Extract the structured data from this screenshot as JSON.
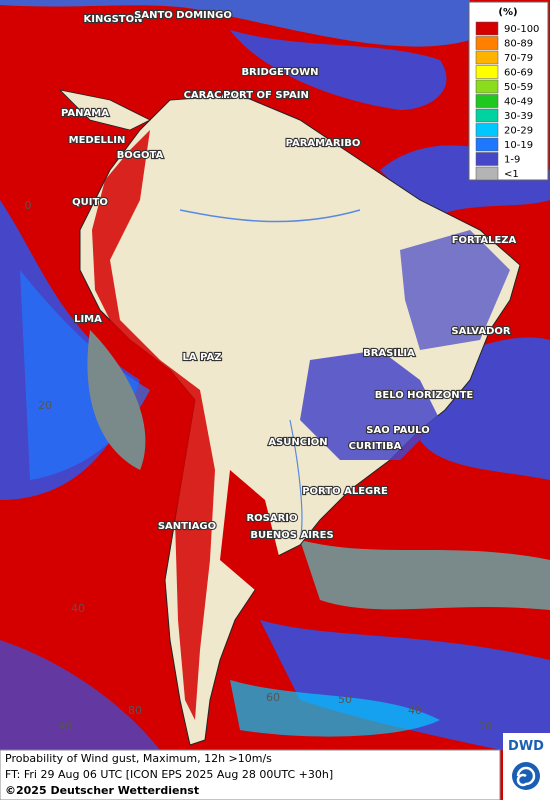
{
  "legend": {
    "unit": "(%)",
    "items": [
      {
        "label": "90-100",
        "color": "#d40000"
      },
      {
        "label": "80-89",
        "color": "#ff7f00"
      },
      {
        "label": "70-79",
        "color": "#ffb300"
      },
      {
        "label": "60-69",
        "color": "#ffff00"
      },
      {
        "label": "50-59",
        "color": "#8cdc1e"
      },
      {
        "label": "40-49",
        "color": "#1ec81e"
      },
      {
        "label": "30-39",
        "color": "#00d2a0"
      },
      {
        "label": "20-29",
        "color": "#00c8ff"
      },
      {
        "label": "10-19",
        "color": "#1e78ff"
      },
      {
        "label": "1-9",
        "color": "#4646c8"
      },
      {
        "label": "<1",
        "color": "#b4b4b4"
      }
    ]
  },
  "cities": [
    "KINGSTON",
    "SANTO DOMINGO",
    "BRIDGETOWN",
    "CARACAS",
    "PORT OF SPAIN",
    "PANAMA",
    "MEDELLIN",
    "BOGOTA",
    "PARAMARIBO",
    "QUITO",
    "FORTALEZA",
    "LIMA",
    "SALVADOR",
    "LA PAZ",
    "BRASILIA",
    "BELO HORIZONTE",
    "SAO PAULO",
    "ASUNCION",
    "CURITIBA",
    "PORTO ALEGRE",
    "ROSARIO",
    "SANTIAGO",
    "BUENOS AIRES"
  ],
  "grid_labels": [
    "0",
    "20",
    "40",
    "90",
    "80",
    "60",
    "50",
    "40",
    "30"
  ],
  "caption": {
    "line1": "Probability of Wind gust, Maximum, 12h >10m/s",
    "line2": "FT: Fri 29 Aug 06 UTC [ICON EPS 2025 Aug 28 00UTC +30h]",
    "line3": "©2025 Deutscher Wetterdienst"
  },
  "logo": "DWD"
}
